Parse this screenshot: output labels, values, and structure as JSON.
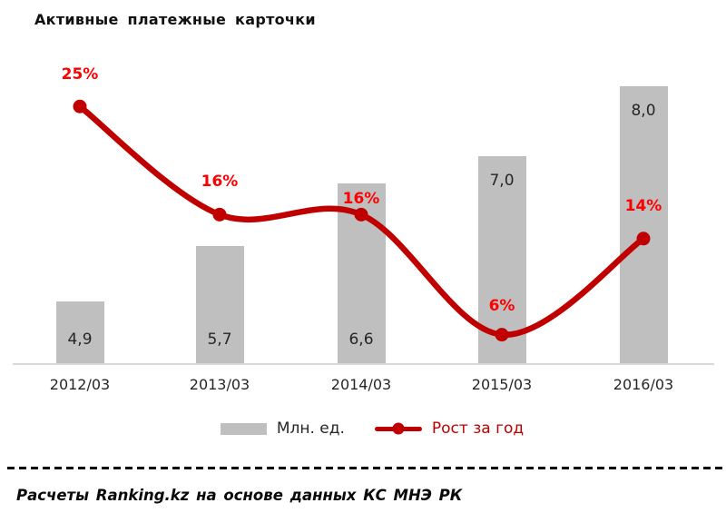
{
  "title": "Активные платежные карточки",
  "footer": "Расчеты Ranking.kz на основе данных КС МНЭ РК",
  "colors": {
    "bar": "#bfbfbf",
    "line": "#c00000",
    "data_label_red": "#fe0000",
    "text_dark": "#262626",
    "axis_line": "#d9d9d9"
  },
  "legend": [
    {
      "label": "Млн. ед.",
      "swatch": "bar-swatch"
    },
    {
      "label": "Рост за год",
      "swatch": "line-swatch"
    }
  ],
  "chart_data": {
    "type": "bar+line",
    "categories": [
      "2012/03",
      "2013/03",
      "2014/03",
      "2015/03",
      "2016/03"
    ],
    "series": [
      {
        "name": "Млн. ед.",
        "type": "bar",
        "values": [
          4.9,
          5.7,
          6.6,
          7.0,
          8.0
        ],
        "labels": [
          "4,9",
          "5,7",
          "6,6",
          "7,0",
          "8,0"
        ],
        "color": "#bfbfbf"
      },
      {
        "name": "Рост за год",
        "type": "line",
        "values": [
          25,
          16,
          16,
          6,
          14
        ],
        "labels": [
          "25%",
          "16%",
          "16%",
          "6%",
          "14%"
        ],
        "color": "#c00000",
        "smooth": true,
        "markers": true
      }
    ],
    "title": "Активные платежные карточки",
    "xlabel": "",
    "ylabel": "",
    "bar_axis": {
      "min": 4,
      "max": 8.5,
      "visible": false
    },
    "line_axis": {
      "min": 0,
      "max": 26,
      "unit": "%",
      "visible": false
    },
    "grid": false,
    "legend_position": "bottom",
    "source_note": "Расчеты Ranking.kz на основе данных КС МНЭ РК"
  }
}
